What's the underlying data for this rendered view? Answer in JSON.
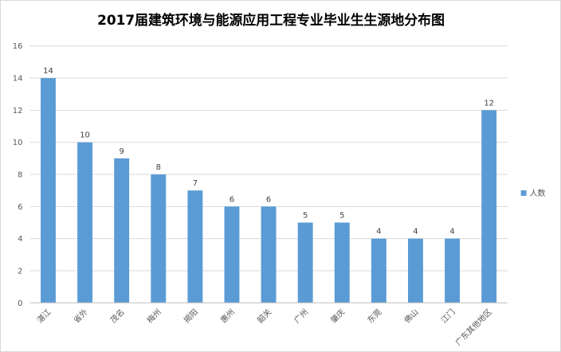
{
  "chart_data": {
    "type": "bar",
    "title": "2017届建筑环境与能源应用工程专业毕业生生源地分布图",
    "xlabel": "",
    "ylabel": "",
    "ylim": [
      0,
      16
    ],
    "yticks": [
      0,
      2,
      4,
      6,
      8,
      10,
      12,
      14,
      16
    ],
    "grid": true,
    "legend_position": "right",
    "categories": [
      "湛江",
      "省外",
      "茂名",
      "梅州",
      "揭阳",
      "惠州",
      "韶关",
      "广州",
      "肇庆",
      "东莞",
      "佛山",
      "江门",
      "广东其他地区"
    ],
    "series": [
      {
        "name": "人数",
        "values": [
          14,
          10,
          9,
          8,
          7,
          6,
          6,
          5,
          5,
          4,
          4,
          4,
          12
        ]
      }
    ],
    "colors": {
      "bar": "#5b9bd5",
      "grid": "#d9d9d9",
      "axis": "#bfbfbf"
    }
  }
}
